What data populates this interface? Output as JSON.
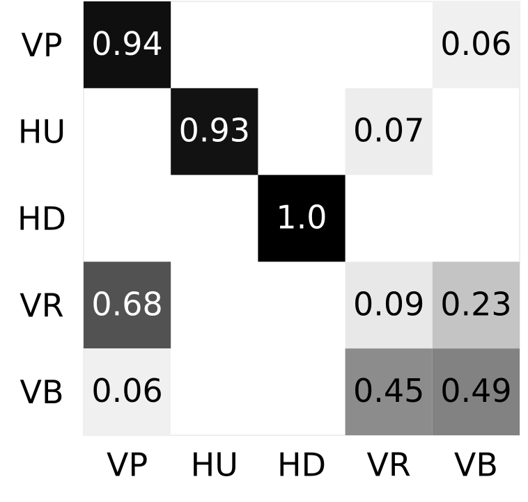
{
  "chart_data": {
    "type": "heatmap",
    "rows": [
      "VP",
      "HU",
      "HD",
      "VR",
      "VB"
    ],
    "columns": [
      "VP",
      "HU",
      "HD",
      "VR",
      "VB"
    ],
    "values": [
      [
        0.94,
        null,
        null,
        null,
        0.06
      ],
      [
        null,
        0.93,
        null,
        0.07,
        null
      ],
      [
        null,
        null,
        1.0,
        null,
        null
      ],
      [
        0.68,
        null,
        null,
        0.09,
        0.23
      ],
      [
        0.06,
        null,
        null,
        0.45,
        0.49
      ]
    ],
    "value_labels": [
      [
        "0.94",
        null,
        null,
        null,
        "0.06"
      ],
      [
        null,
        "0.93",
        null,
        "0.07",
        null
      ],
      [
        null,
        null,
        "1.0",
        null,
        null
      ],
      [
        "0.68",
        null,
        null,
        "0.09",
        "0.23"
      ],
      [
        "0.06",
        null,
        null,
        "0.45",
        "0.49"
      ]
    ],
    "colormap": "gray_r"
  }
}
